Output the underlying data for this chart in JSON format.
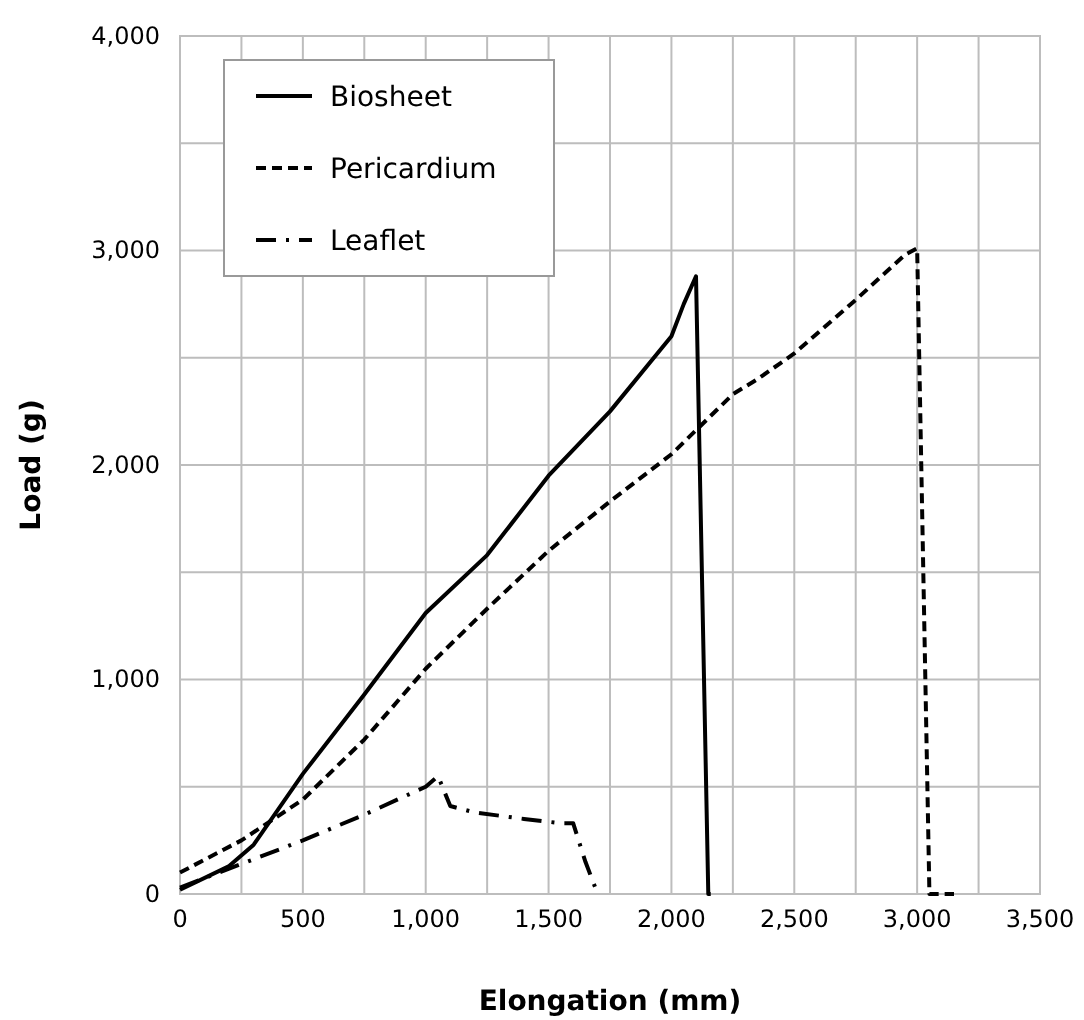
{
  "chart_data": {
    "type": "line",
    "xlabel": "Elongation (mm)",
    "ylabel": "Load (g)",
    "xlim": [
      0,
      3500
    ],
    "ylim": [
      0,
      4000
    ],
    "xticks": [
      0,
      {
        "value": 250,
        "label": null
      },
      {
        "value": 500,
        "label": "500"
      },
      {
        "value": 750,
        "label": null
      },
      {
        "value": 1000,
        "label": "1,000"
      },
      {
        "value": 1250,
        "label": null
      },
      {
        "value": 1500,
        "label": "1,500"
      },
      {
        "value": 1750,
        "label": null
      },
      {
        "value": 2000,
        "label": "2,000"
      },
      {
        "value": 2250,
        "label": null
      },
      {
        "value": 2500,
        "label": "2,500"
      },
      {
        "value": 2750,
        "label": null
      },
      {
        "value": 3000,
        "label": "3,000"
      },
      {
        "value": 3250,
        "label": null
      },
      {
        "value": 3500,
        "label": "3,500"
      }
    ],
    "yticks": [
      0,
      {
        "value": 500,
        "label": null
      },
      {
        "value": 1000,
        "label": "1,000"
      },
      {
        "value": 1500,
        "label": null
      },
      {
        "value": 2000,
        "label": "2,000"
      },
      {
        "value": 2500,
        "label": null
      },
      {
        "value": 3000,
        "label": "3,000"
      },
      {
        "value": 3500,
        "label": null
      },
      {
        "value": 4000,
        "label": "4,000"
      }
    ],
    "grid": true,
    "legend": "top left",
    "marker": "none",
    "series": [
      {
        "name": "Biosheet",
        "color": "#000000",
        "line_style": "solid",
        "x": [
          0,
          200,
          300,
          500,
          750,
          1000,
          1250,
          1500,
          1750,
          2000,
          2050,
          2100,
          2150,
          2160
        ],
        "values": [
          20,
          130,
          230,
          560,
          930,
          1310,
          1580,
          1950,
          2250,
          2600,
          2750,
          2880,
          0,
          0
        ]
      },
      {
        "name": "Pericardium",
        "color": "#000000",
        "line_style": "dashed",
        "x": [
          0,
          250,
          500,
          750,
          1000,
          1250,
          1500,
          1750,
          2000,
          2250,
          2350,
          2500,
          2750,
          2950,
          3000,
          3050,
          3150
        ],
        "values": [
          100,
          250,
          440,
          720,
          1050,
          1330,
          1600,
          1830,
          2050,
          2330,
          2400,
          2520,
          2770,
          2980,
          3010,
          0,
          0
        ]
      },
      {
        "name": "Leaflet",
        "color": "#000000",
        "line_style": "dashdot",
        "x": [
          0,
          250,
          500,
          750,
          1000,
          1050,
          1100,
          1200,
          1400,
          1550,
          1600,
          1650,
          1700
        ],
        "values": [
          30,
          140,
          250,
          370,
          500,
          550,
          410,
          380,
          350,
          330,
          330,
          150,
          0
        ]
      }
    ]
  }
}
